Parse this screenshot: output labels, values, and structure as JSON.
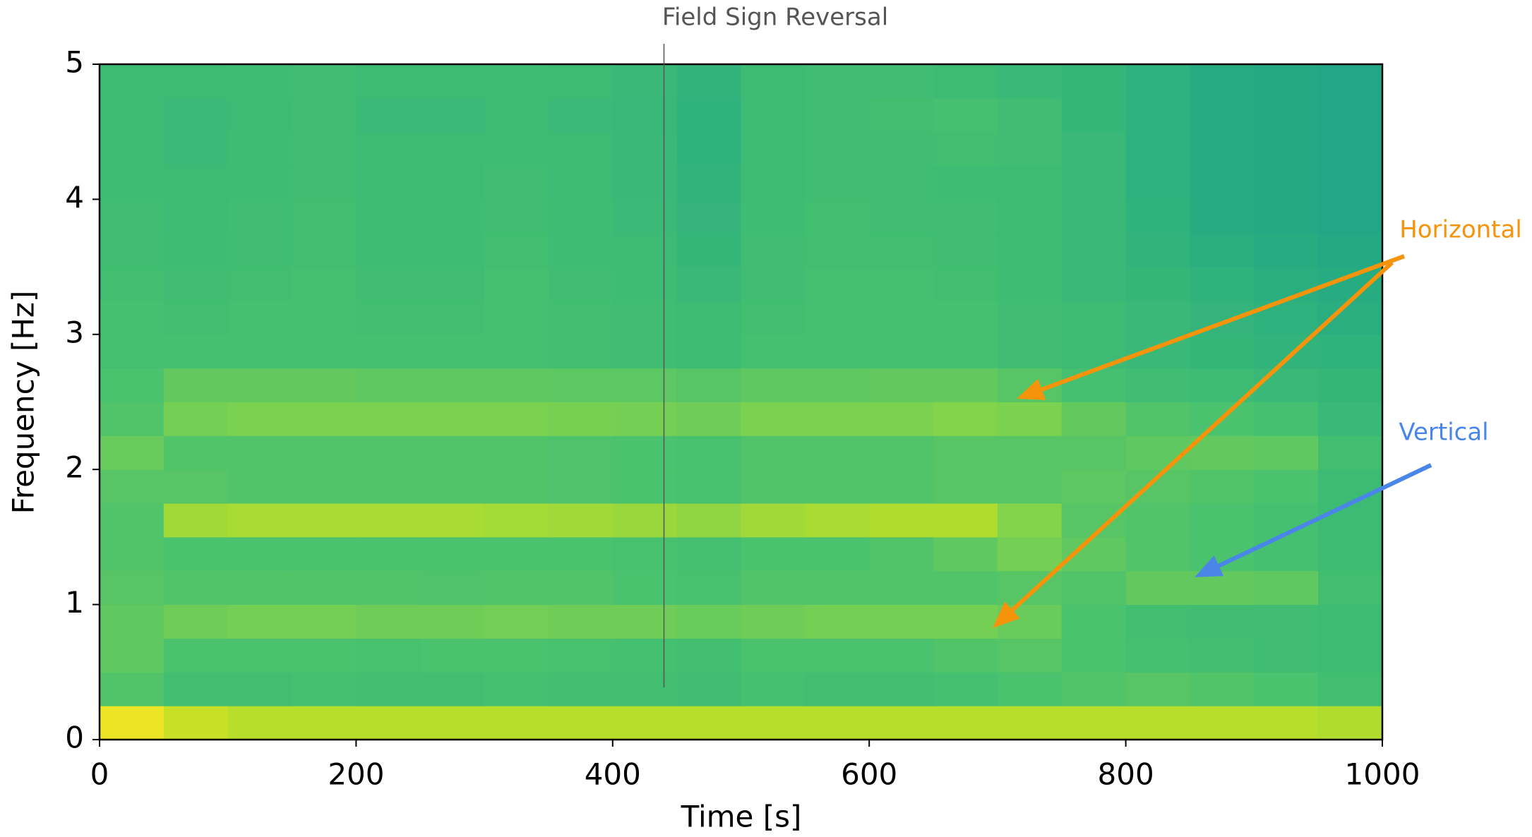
{
  "chart_data": {
    "type": "heatmap",
    "xlabel": "Time [s]",
    "ylabel": "Frequency [Hz]",
    "xlim": [
      0,
      1000
    ],
    "ylim": [
      0,
      5
    ],
    "xticks": [
      0,
      200,
      400,
      600,
      800,
      1000
    ],
    "yticks": [
      0,
      1,
      2,
      3,
      4,
      5
    ],
    "colormap": "viridis",
    "zlim": [
      0,
      100
    ],
    "xbins": [
      0,
      50,
      100,
      150,
      200,
      250,
      300,
      350,
      400,
      450,
      500,
      550,
      600,
      650,
      700,
      750,
      800,
      850,
      900,
      950,
      1000
    ],
    "ybins": [
      0,
      0.25,
      0.5,
      0.75,
      1,
      1.25,
      1.5,
      1.75,
      2,
      2.25,
      2.5,
      2.75,
      3,
      3.25,
      3.5,
      3.75,
      4,
      4.25,
      4.5,
      4.75,
      5
    ],
    "z": [
      [
        95,
        85,
        80,
        80,
        80,
        80,
        80,
        80,
        80,
        80,
        80,
        80,
        80,
        80,
        80,
        80,
        80,
        80,
        80,
        78
      ],
      [
        50,
        45,
        45,
        46,
        45,
        45,
        46,
        45,
        45,
        44,
        46,
        45,
        45,
        46,
        48,
        50,
        52,
        50,
        48,
        45
      ],
      [
        55,
        48,
        48,
        48,
        47,
        48,
        48,
        47,
        46,
        45,
        48,
        48,
        48,
        50,
        52,
        48,
        46,
        45,
        44,
        42
      ],
      [
        55,
        60,
        62,
        62,
        60,
        60,
        61,
        60,
        60,
        58,
        60,
        62,
        62,
        62,
        58,
        48,
        45,
        44,
        44,
        42
      ],
      [
        52,
        50,
        50,
        50,
        50,
        49,
        50,
        50,
        48,
        47,
        50,
        50,
        50,
        50,
        52,
        50,
        56,
        56,
        55,
        45
      ],
      [
        50,
        48,
        48,
        48,
        48,
        48,
        48,
        48,
        47,
        46,
        48,
        48,
        50,
        55,
        62,
        55,
        50,
        48,
        46,
        42
      ],
      [
        50,
        74,
        76,
        76,
        76,
        76,
        75,
        74,
        72,
        70,
        74,
        76,
        78,
        78,
        66,
        52,
        50,
        48,
        46,
        42
      ],
      [
        52,
        52,
        50,
        50,
        50,
        50,
        50,
        49,
        48,
        47,
        50,
        50,
        50,
        52,
        52,
        54,
        52,
        50,
        48,
        42
      ],
      [
        58,
        50,
        50,
        50,
        50,
        50,
        50,
        49,
        48,
        47,
        50,
        50,
        50,
        52,
        52,
        52,
        55,
        56,
        55,
        45
      ],
      [
        50,
        62,
        64,
        64,
        64,
        64,
        64,
        63,
        62,
        60,
        64,
        64,
        64,
        66,
        64,
        56,
        50,
        48,
        46,
        40
      ],
      [
        48,
        56,
        56,
        56,
        55,
        55,
        55,
        54,
        54,
        52,
        55,
        55,
        56,
        56,
        52,
        46,
        44,
        42,
        40,
        38
      ],
      [
        46,
        46,
        46,
        46,
        46,
        46,
        46,
        45,
        44,
        42,
        46,
        46,
        46,
        46,
        44,
        42,
        40,
        38,
        36,
        35
      ],
      [
        46,
        45,
        46,
        46,
        45,
        45,
        46,
        45,
        44,
        42,
        45,
        46,
        46,
        46,
        44,
        42,
        40,
        37,
        34,
        32
      ],
      [
        45,
        44,
        45,
        46,
        44,
        44,
        46,
        44,
        43,
        40,
        44,
        46,
        46,
        45,
        43,
        40,
        38,
        35,
        32,
        30
      ],
      [
        44,
        43,
        44,
        45,
        43,
        43,
        45,
        43,
        42,
        38,
        44,
        45,
        45,
        44,
        42,
        40,
        36,
        32,
        30,
        28
      ],
      [
        44,
        42,
        44,
        45,
        42,
        43,
        44,
        43,
        41,
        37,
        43,
        45,
        44,
        44,
        42,
        40,
        35,
        30,
        28,
        26
      ],
      [
        43,
        42,
        43,
        44,
        42,
        42,
        44,
        42,
        40,
        36,
        42,
        44,
        44,
        43,
        42,
        40,
        34,
        30,
        28,
        26
      ],
      [
        43,
        41,
        43,
        44,
        42,
        42,
        43,
        42,
        40,
        35,
        42,
        44,
        44,
        45,
        44,
        40,
        34,
        30,
        28,
        26
      ],
      [
        42,
        41,
        42,
        44,
        41,
        41,
        42,
        41,
        39,
        35,
        42,
        44,
        45,
        46,
        44,
        38,
        34,
        30,
        28,
        26
      ],
      [
        42,
        42,
        43,
        44,
        42,
        42,
        43,
        42,
        40,
        36,
        42,
        44,
        44,
        42,
        40,
        38,
        34,
        30,
        28,
        26
      ]
    ],
    "annotations": [
      {
        "text": "Field Sign Reversal",
        "x": 440,
        "color": "#555555"
      },
      {
        "text": "Horizontal",
        "color": "#f5930a"
      },
      {
        "text": "Vertical",
        "color": "#4a86e8"
      }
    ]
  }
}
